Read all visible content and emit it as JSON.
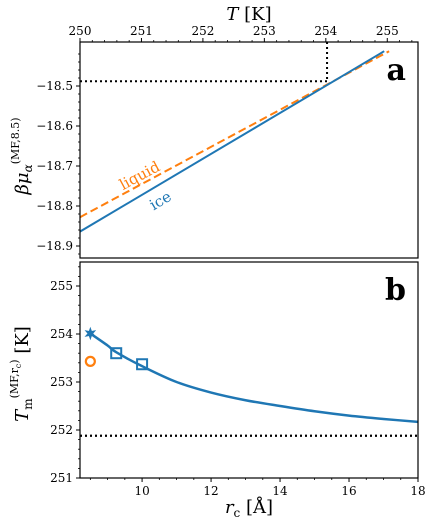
{
  "chart_data": [
    {
      "panel": "a",
      "type": "line",
      "top_axis": {
        "label_symbol": "T",
        "label_unit": "[K]",
        "lim": [
          250,
          255.5
        ],
        "ticks": [
          250,
          251,
          252,
          253,
          254,
          255
        ],
        "tick_labels": [
          "250",
          "251",
          "252",
          "253",
          "254",
          "255"
        ]
      },
      "yaxis": {
        "label_main": "βμ",
        "label_sub": "α",
        "label_sup": "(MF,8.5)",
        "lim": [
          -18.93,
          -18.39
        ],
        "ticks": [
          -18.5,
          -18.6,
          -18.7,
          -18.8,
          -18.9
        ],
        "tick_labels": [
          "−18.5",
          "−18.6",
          "−18.7",
          "−18.8",
          "−18.9"
        ]
      },
      "series": [
        {
          "name": "liquid",
          "color": "#ff7f0e",
          "style": "dashed",
          "points": [
            [
              250,
              -18.828
            ],
            [
              255.03,
              -18.413
            ]
          ]
        },
        {
          "name": "ice",
          "color": "#1f77b4",
          "style": "solid",
          "points": [
            [
              250,
              -18.864
            ],
            [
              254.95,
              -18.413
            ]
          ]
        }
      ],
      "reference_lines": {
        "color": "#000000",
        "style": "dotted",
        "crossing_T": 254.02,
        "crossing_mu": -18.488
      },
      "panel_label": "a"
    },
    {
      "panel": "b",
      "type": "line",
      "xaxis": {
        "label_symbol": "r",
        "label_sub": "c",
        "label_unit": "[Å]",
        "lim": [
          8.2,
          18
        ],
        "ticks": [
          10,
          12,
          14,
          16,
          18
        ],
        "tick_labels": [
          "10",
          "12",
          "14",
          "16",
          "18"
        ]
      },
      "yaxis": {
        "label_main": "T",
        "label_sub": "m",
        "label_sup": "(MF,r",
        "label_sup_sub": "c",
        "label_sup_close": ")",
        "label_unit": "[K]",
        "lim": [
          251,
          255.5
        ],
        "ticks": [
          251,
          252,
          253,
          254,
          255
        ],
        "tick_labels": [
          "251",
          "252",
          "253",
          "254",
          "255"
        ]
      },
      "series": [
        {
          "name": "",
          "color": "#1f77b4",
          "style": "solid",
          "points": [
            [
              8.5,
              254.01
            ],
            [
              9.0,
              253.76
            ],
            [
              9.25,
              253.62
            ],
            [
              10.0,
              253.33
            ],
            [
              11.0,
              253.0
            ],
            [
              12.0,
              252.78
            ],
            [
              13.0,
              252.62
            ],
            [
              14.0,
              252.5
            ],
            [
              15.0,
              252.39
            ],
            [
              16.0,
              252.3
            ],
            [
              17.0,
              252.23
            ],
            [
              18.0,
              252.17
            ]
          ]
        }
      ],
      "markers": [
        {
          "shape": "star",
          "color": "#1f77b4",
          "x": 8.5,
          "y": 254.01
        },
        {
          "shape": "square",
          "color": "#1f77b4",
          "x": 9.25,
          "y": 253.6
        },
        {
          "shape": "square",
          "color": "#1f77b4",
          "x": 10.0,
          "y": 253.37
        },
        {
          "shape": "circle",
          "color": "#ff7f0e",
          "x": 8.5,
          "y": 253.43
        }
      ],
      "hline": {
        "y": 251.88,
        "color": "#000000",
        "style": "dotted"
      },
      "panel_label": "b"
    }
  ]
}
